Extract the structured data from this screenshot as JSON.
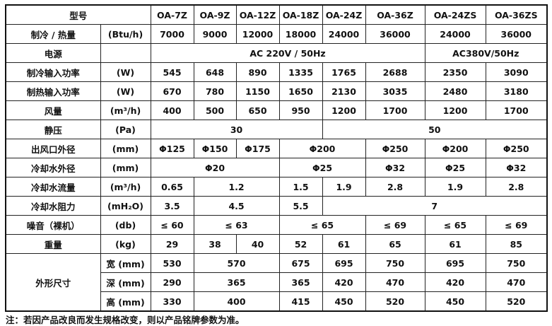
{
  "models": [
    "OA-7Z",
    "OA-9Z",
    "OA-12Z",
    "OA-18Z",
    "OA-24Z",
    "OA-36Z",
    "OA-24ZS",
    "OA-36ZS"
  ],
  "header_label": "型号",
  "rows": [
    {
      "label": "制冷 / 热量",
      "unit": "(Btu/h)",
      "cells": [
        {
          "t": "7000"
        },
        {
          "t": "9000"
        },
        {
          "t": "12000"
        },
        {
          "t": "18000"
        },
        {
          "t": "24000"
        },
        {
          "t": "36000"
        },
        {
          "t": "24000"
        },
        {
          "t": "36000"
        }
      ]
    },
    {
      "label": "电源",
      "unit": "",
      "cells": [
        {
          "t": "AC 220V / 50Hz",
          "s": 6
        },
        {
          "t": "AC380V/50Hz",
          "s": 2
        }
      ]
    },
    {
      "label": "制冷输入功率",
      "unit": "(W)",
      "cells": [
        {
          "t": "545"
        },
        {
          "t": "648"
        },
        {
          "t": "890"
        },
        {
          "t": "1335"
        },
        {
          "t": "1765"
        },
        {
          "t": "2688"
        },
        {
          "t": "2350"
        },
        {
          "t": "3090"
        }
      ]
    },
    {
      "label": "制热输入功率",
      "unit": "(W)",
      "cells": [
        {
          "t": "670"
        },
        {
          "t": "780"
        },
        {
          "t": "1150"
        },
        {
          "t": "1650"
        },
        {
          "t": "2130"
        },
        {
          "t": "3035"
        },
        {
          "t": "2480"
        },
        {
          "t": "3180"
        }
      ]
    },
    {
      "label": "风量",
      "unit": "(m³/h)",
      "cells": [
        {
          "t": "400"
        },
        {
          "t": "500"
        },
        {
          "t": "650"
        },
        {
          "t": "950"
        },
        {
          "t": "1200"
        },
        {
          "t": "1700"
        },
        {
          "t": "1200"
        },
        {
          "t": "1700"
        }
      ]
    },
    {
      "label": "静压",
      "unit": "(Pa)",
      "cells": [
        {
          "t": "30",
          "s": 4
        },
        {
          "t": "50",
          "s": 4
        }
      ]
    },
    {
      "label": "出风口外径",
      "unit": "(mm)",
      "cells": [
        {
          "t": "Φ125"
        },
        {
          "t": "Φ150"
        },
        {
          "t": "Φ175"
        },
        {
          "t": "Φ200",
          "s": 2
        },
        {
          "t": "Φ250"
        },
        {
          "t": "Φ200"
        },
        {
          "t": "Φ250"
        }
      ]
    },
    {
      "label": "冷却水外径",
      "unit": "(mm)",
      "cells": [
        {
          "t": "Φ20",
          "s": 3
        },
        {
          "t": "Φ25",
          "s": 2
        },
        {
          "t": "Φ32"
        },
        {
          "t": "Φ25"
        },
        {
          "t": "Φ32"
        }
      ]
    },
    {
      "label": "冷却水流量",
      "unit": "(m³/h)",
      "cells": [
        {
          "t": "0.65"
        },
        {
          "t": "1.2",
          "s": 2
        },
        {
          "t": "1.5"
        },
        {
          "t": "1.9"
        },
        {
          "t": "2.8"
        },
        {
          "t": "1.9"
        },
        {
          "t": "2.8"
        }
      ]
    },
    {
      "label": "冷却水阻力",
      "unit": "(mH₂O)",
      "cells": [
        {
          "t": "3.5"
        },
        {
          "t": "4.5",
          "s": 2
        },
        {
          "t": "5.5"
        },
        {
          "t": "7",
          "s": 4
        }
      ]
    },
    {
      "label": "噪音（裸机）",
      "unit": "(db)",
      "cells": [
        {
          "t": "≤ 60"
        },
        {
          "t": "≤ 63",
          "s": 2
        },
        {
          "t": "≤ 65",
          "s": 2
        },
        {
          "t": "≤ 69"
        },
        {
          "t": "≤ 65"
        },
        {
          "t": "≤ 69"
        }
      ]
    },
    {
      "label": "重量",
      "unit": "(kg)",
      "cells": [
        {
          "t": "29"
        },
        {
          "t": "38"
        },
        {
          "t": "40"
        },
        {
          "t": "52"
        },
        {
          "t": "61"
        },
        {
          "t": "65"
        },
        {
          "t": "61"
        },
        {
          "t": "85"
        }
      ]
    }
  ],
  "dimensions": {
    "label": "外形尺寸",
    "rows": [
      {
        "unit": "宽 (mm)",
        "cells": [
          {
            "t": "530"
          },
          {
            "t": "570",
            "s": 2
          },
          {
            "t": "675"
          },
          {
            "t": "695"
          },
          {
            "t": "750"
          },
          {
            "t": "695"
          },
          {
            "t": "750"
          }
        ]
      },
      {
        "unit": "深 (mm)",
        "cells": [
          {
            "t": "290"
          },
          {
            "t": "365",
            "s": 2
          },
          {
            "t": "365"
          },
          {
            "t": "420"
          },
          {
            "t": "470"
          },
          {
            "t": "420"
          },
          {
            "t": "470"
          }
        ]
      },
      {
        "unit": "高 (mm)",
        "cells": [
          {
            "t": "330"
          },
          {
            "t": "400",
            "s": 2
          },
          {
            "t": "415"
          },
          {
            "t": "450"
          },
          {
            "t": "520"
          },
          {
            "t": "450"
          },
          {
            "t": "520"
          }
        ]
      }
    ]
  },
  "note": "注：若因产品改良而发生规格改变，则以产品铭牌参数为准。"
}
